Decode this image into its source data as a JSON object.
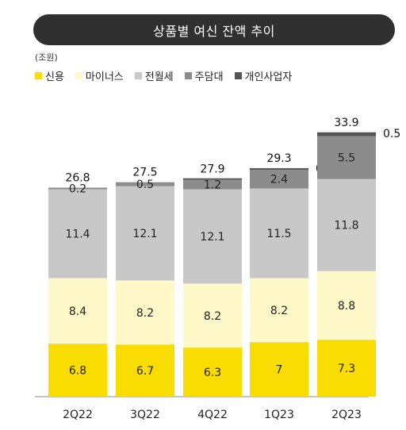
{
  "header": {
    "title": "상품별 여신 잔액 추이",
    "unit": "(조원)"
  },
  "chart_data": {
    "type": "bar",
    "stacked": true,
    "title": "상품별 여신 잔액 추이",
    "unit": "(조원)",
    "categories": [
      "2Q22",
      "3Q22",
      "4Q22",
      "1Q23",
      "2Q23"
    ],
    "series": [
      {
        "name": "신용",
        "color": "#F9DD00",
        "values": [
          6.8,
          6.7,
          6.3,
          7.0,
          7.3
        ]
      },
      {
        "name": "마이너스",
        "color": "#FFF8C8",
        "values": [
          8.4,
          8.2,
          8.2,
          8.2,
          8.8
        ]
      },
      {
        "name": "전월세",
        "color": "#C8C8C8",
        "values": [
          11.4,
          12.1,
          12.1,
          11.5,
          11.8
        ]
      },
      {
        "name": "주담대",
        "color": "#8C8C8C",
        "values": [
          0.2,
          0.5,
          1.2,
          2.4,
          5.5
        ]
      },
      {
        "name": "개인사업자",
        "color": "#555555",
        "values": [
          null,
          null,
          0.1,
          0.2,
          0.5
        ]
      }
    ],
    "totals": [
      26.8,
      27.5,
      27.9,
      29.3,
      33.9
    ],
    "legend_position": "top-left",
    "grid": false
  }
}
